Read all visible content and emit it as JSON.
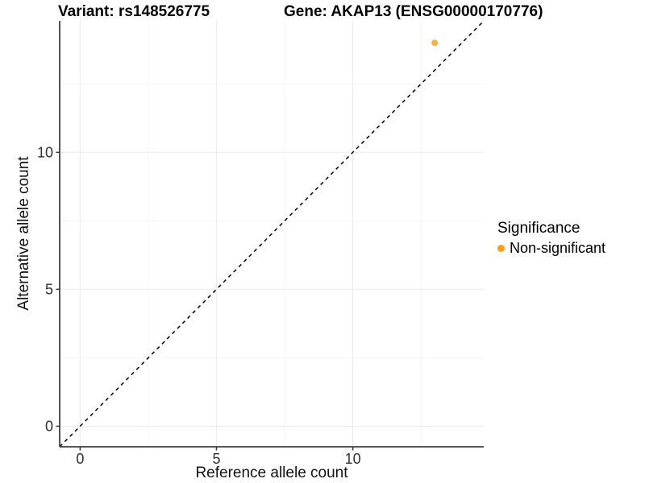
{
  "chart_data": {
    "type": "scatter",
    "title_left": "Variant: rs148526775",
    "title_right": "Gene: AKAP13 (ENSG00000170776)",
    "xlabel": "Reference allele count",
    "ylabel": "Alternative allele count",
    "xlim": [
      -0.75,
      14.8
    ],
    "ylim": [
      -0.75,
      14.8
    ],
    "x_major_ticks": [
      0,
      5,
      10
    ],
    "y_major_ticks": [
      0,
      5,
      10
    ],
    "x_minor_ticks": [
      2.5,
      7.5,
      12.5
    ],
    "y_minor_ticks": [
      2.5,
      7.5,
      12.5
    ],
    "grid": true,
    "reference_line": {
      "type": "identity",
      "slope": 1,
      "intercept": 0,
      "style": "dashed",
      "color": "#000000"
    },
    "series": [
      {
        "name": "Non-significant",
        "color": "#F99E20",
        "point_opacity": 0.8,
        "points": [
          {
            "x": 13,
            "y": 14
          }
        ]
      }
    ],
    "legend": {
      "title": "Significance",
      "position": "right",
      "entries": [
        {
          "label": "Non-significant",
          "color": "#F99E20"
        }
      ]
    }
  },
  "style_colors": {
    "axis_line": "#404040",
    "tick_mark": "#333333",
    "tick_label": "#303030",
    "grid_major": "#ececec",
    "grid_minor": "#f5f5f5",
    "background": "#ffffff"
  }
}
